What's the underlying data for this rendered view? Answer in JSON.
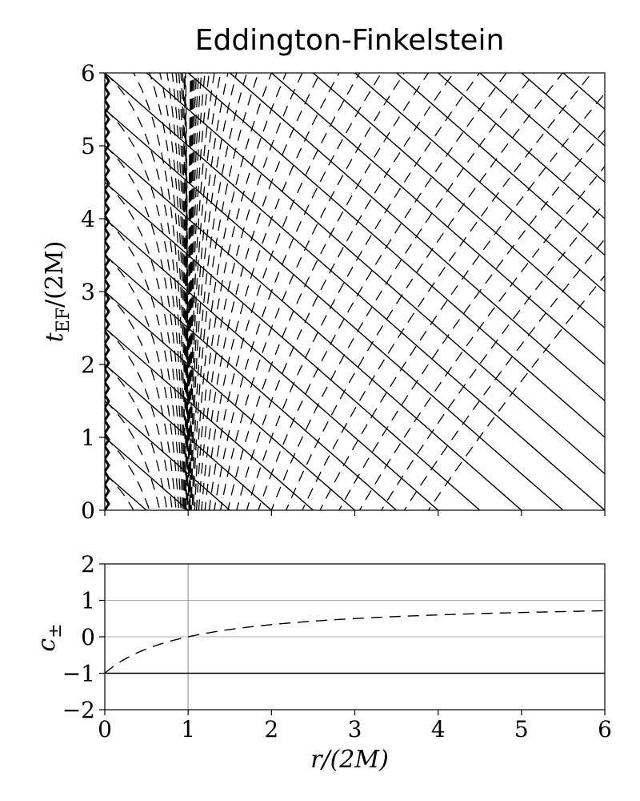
{
  "chart_data": [
    {
      "type": "line",
      "title": "Eddington-Finkelstein",
      "ylabel": "t_EF/(2M)",
      "xlim": [
        0,
        6
      ],
      "ylim": [
        0,
        6
      ],
      "xticks": [
        "0",
        "1",
        "2",
        "3",
        "4",
        "5",
        "6"
      ],
      "yticks": [
        "0",
        "1",
        "2",
        "3",
        "4",
        "5",
        "6"
      ],
      "x_tick_labels_shown": false,
      "grid": false,
      "singularity": {
        "r": 0,
        "style": "zigzag"
      },
      "series": [
        {
          "style": "solid",
          "description_key": "ingoing",
          "family": "t = C - r",
          "C_values": [
            0,
            0.5,
            1,
            1.5,
            2,
            2.5,
            3,
            3.5,
            4,
            4.5,
            5,
            5.5,
            6,
            6.5,
            7,
            7.5,
            8,
            8.5,
            9,
            9.5,
            10,
            10.5,
            11,
            11.5,
            12
          ]
        },
        {
          "style": "dashed",
          "description_key": "outgoing",
          "family": "t = r + 2 ln|r - 1| + C",
          "spacing": 0.5
        }
      ]
    },
    {
      "type": "line",
      "xlabel": "r/(2M)",
      "ylabel": "c_±",
      "xlim": [
        0,
        6
      ],
      "ylim": [
        -2,
        2
      ],
      "xticks": [
        "0",
        "1",
        "2",
        "3",
        "4",
        "5",
        "6"
      ],
      "yticks": [
        "2",
        "1",
        "0",
        "−1",
        "−2"
      ],
      "grid_y": [
        1,
        0
      ],
      "vline_x": 1,
      "series": [
        {
          "style": "solid",
          "formula": "c = -1",
          "x": [
            0,
            6
          ],
          "y": [
            -1,
            -1
          ]
        },
        {
          "style": "dashed",
          "formula": "c = (r-1)/(r+1)",
          "x": [
            0,
            0.5,
            1,
            2,
            3,
            4,
            5,
            6
          ],
          "y": [
            -1,
            -0.333,
            0,
            0.333,
            0.5,
            0.6,
            0.667,
            0.714
          ]
        }
      ]
    }
  ],
  "labels": {
    "title": "Eddington-Finkelstein",
    "top_ylabel_main": "t",
    "top_ylabel_sub": "EF",
    "top_ylabel_rest": "/(2M)",
    "bottom_ylabel_main": "c",
    "bottom_ylabel_sub": "±",
    "xlabel": "r/(2M)"
  }
}
